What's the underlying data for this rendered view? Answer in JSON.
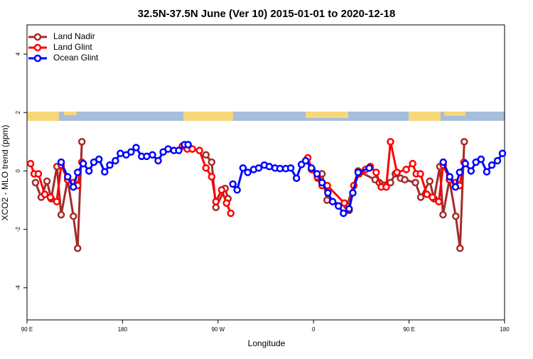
{
  "chart_data": {
    "type": "line",
    "title": "32.5N-37.5N June (Ver 10)   2015-01-01 to 2020-12-18",
    "x_label": "Longitude",
    "y_label": "XCO2 - MLO trend (ppm)",
    "xlim": [
      90,
      540
    ],
    "ylim": [
      -5.1,
      5.0
    ],
    "xticks": [
      {
        "value": 90,
        "label": "90 E"
      },
      180,
      {
        "value": 270,
        "label": "90 W"
      },
      {
        "value": 360,
        "label": "0"
      },
      {
        "value": 450,
        "label": "90 E"
      },
      180
    ],
    "yticks": [
      -4,
      -2,
      0,
      2,
      4
    ],
    "legend": "top-left",
    "series": [
      {
        "name": "Land Nadir",
        "color": "#a52a2a",
        "x": [
          98,
          103.4,
          108.8,
          112.8,
          118.2,
          122.2,
          128.3,
          133.7,
          137.7,
          141.7,
          null,
          258.6,
          264,
          268,
          276.7,
          279.4,
          null,
          358,
          364,
          368,
          372.7,
          391.5,
          402,
          418,
          422,
          432.5,
          437,
          442,
          446,
          456,
          461,
          469.5,
          473.5,
          479,
          482,
          488,
          494,
          498,
          502
        ],
        "values": [
          -0.4,
          -0.9,
          -0.35,
          -0.95,
          0.15,
          -1.5,
          -0.3,
          -1.55,
          -2.65,
          1.0,
          null,
          0.55,
          0.3,
          -1.25,
          -0.6,
          -0.95,
          null,
          0.05,
          -0.25,
          -0.1,
          -1.0,
          -1.2,
          0,
          -0.3,
          -0.4,
          -0.4,
          -0.1,
          -0.25,
          -0.3,
          -0.4,
          -0.9,
          -0.35,
          -0.95,
          0.15,
          -1.5,
          -0.3,
          -1.55,
          -2.65,
          1.0
        ]
      },
      {
        "name": "Land Glint",
        "color": "#ff0000",
        "x": [
          93.4,
          96.7,
          100.7,
          106.8,
          112,
          118,
          122.2,
          128.3,
          133.7,
          137.7,
          141.7,
          null,
          236.4,
          241,
          245.8,
          252.5,
          258.6,
          264,
          268,
          273.4,
          278,
          282,
          null,
          354.6,
          358.6,
          363.5,
          368,
          373,
          389,
          393.5,
          398,
          403,
          409,
          413.5,
          419,
          423.8,
          428.5,
          432.5,
          438.6,
          447.3,
          453.4,
          456.7,
          460.7,
          466.8,
          472,
          478,
          482.2,
          488.3,
          493.7,
          497.7,
          501.7
        ],
        "values": [
          0.25,
          -0.1,
          -0.1,
          -0.8,
          -0.9,
          -1.05,
          0.2,
          -0.3,
          -0.4,
          -0.5,
          0.3,
          null,
          0.85,
          0.75,
          0.75,
          0.7,
          0.1,
          -0.2,
          -1.05,
          -0.65,
          -1.1,
          -1.45,
          null,
          0.45,
          0.05,
          -0.2,
          -0.5,
          -0.5,
          -1.1,
          -1.35,
          -0.5,
          -0.1,
          0.05,
          0.15,
          -0.05,
          -0.55,
          -0.55,
          1.0,
          -0.05,
          0.05,
          0.25,
          -0.1,
          -0.1,
          -0.8,
          -0.9,
          -1.05,
          0.2,
          -0.3,
          -0.4,
          -0.5,
          0.3
        ]
      },
      {
        "name": "Ocean Glint",
        "color": "#0000ff",
        "x": [
          122.2,
          128.3,
          133.7,
          137.7,
          143,
          148.4,
          153,
          157.8,
          163.2,
          168,
          173.3,
          178,
          183.4,
          188,
          192.8,
          198,
          202.8,
          208.2,
          213.6,
          218.3,
          223,
          228.4,
          233,
          238.4,
          241.8,
          null,
          284,
          288,
          293.5,
          298,
          303.6,
          308.3,
          313.6,
          318.3,
          323.7,
          328.4,
          333.8,
          338.5,
          343.9,
          348.6,
          352.6,
          358,
          363.3,
          368,
          373.5,
          378,
          383.5,
          388.2,
          393.5,
          397,
          402,
          412.5,
          null,
          482.2,
          488.3,
          493.7,
          497.7,
          503,
          508.4,
          513,
          517.8,
          523.2,
          528,
          533.3,
          538
        ],
        "values": [
          0.3,
          -0.2,
          -0.55,
          -0.05,
          0.25,
          0,
          0.3,
          0.4,
          -0.03,
          0.2,
          0.35,
          0.6,
          0.55,
          0.65,
          0.8,
          0.5,
          0.5,
          0.55,
          0.35,
          0.65,
          0.75,
          0.7,
          0.7,
          0.9,
          0.9,
          null,
          -0.45,
          -0.65,
          0.1,
          -0.05,
          0.05,
          0.1,
          0.2,
          0.15,
          0.1,
          0.08,
          0.08,
          0.1,
          -0.25,
          0.22,
          0.35,
          0.1,
          -0.1,
          -0.4,
          -0.75,
          -1.05,
          -1.2,
          -1.45,
          -1.3,
          -0.75,
          -0.05,
          0.1,
          null,
          0.3,
          -0.2,
          -0.55,
          -0.05,
          0.25,
          0,
          0.3,
          0.4,
          -0.03,
          0.2,
          0.35,
          0.6
        ]
      }
    ]
  }
}
